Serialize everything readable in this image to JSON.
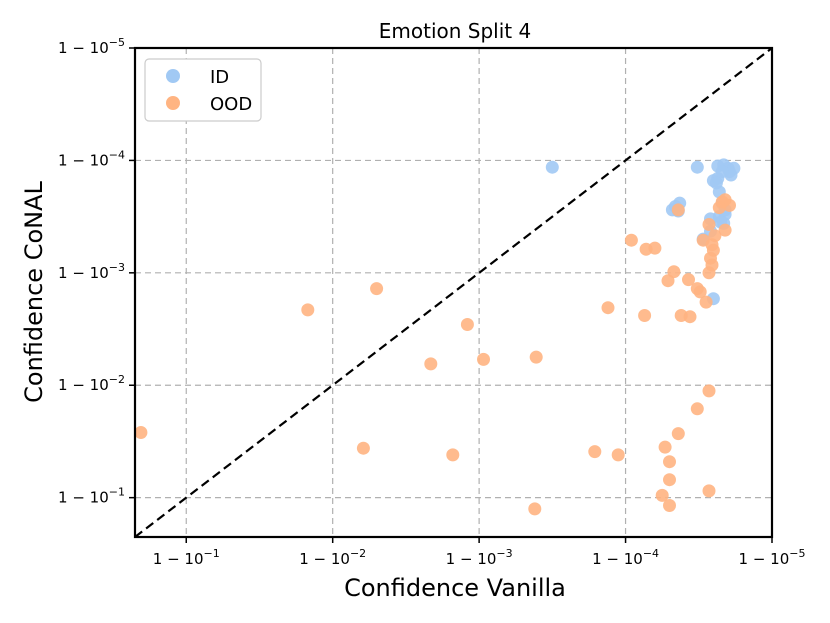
{
  "chart_data": {
    "type": "scatter",
    "title": "Emotion Split 4",
    "xlabel": "Confidence Vanilla",
    "ylabel": "Confidence CoNAL",
    "scale": "log(1 - confidence)",
    "xlim_exponent": [
      -0.65,
      -5.0
    ],
    "ylim_exponent": [
      -0.65,
      -5.0
    ],
    "x_ticks": [
      {
        "exp": -1,
        "base": "1 − 10",
        "sup": "−1"
      },
      {
        "exp": -2,
        "base": "1 − 10",
        "sup": "−2"
      },
      {
        "exp": -3,
        "base": "1 − 10",
        "sup": "−3"
      },
      {
        "exp": -4,
        "base": "1 − 10",
        "sup": "−4"
      },
      {
        "exp": -5,
        "base": "1 − 10",
        "sup": "−5"
      }
    ],
    "y_ticks": [
      {
        "exp": -1,
        "base": "1 − 10",
        "sup": "−1"
      },
      {
        "exp": -2,
        "base": "1 − 10",
        "sup": "−2"
      },
      {
        "exp": -3,
        "base": "1 − 10",
        "sup": "−3"
      },
      {
        "exp": -4,
        "base": "1 − 10",
        "sup": "−4"
      },
      {
        "exp": -5,
        "base": "1 − 10",
        "sup": "−5"
      }
    ],
    "diagonal": true,
    "grid": true,
    "legend_position": "top-left",
    "series": [
      {
        "name": "ID",
        "color": "#a1c9f4",
        "points": [
          [
            -3.5,
            -3.94
          ],
          [
            -4.49,
            -3.94
          ],
          [
            -4.63,
            -3.95
          ],
          [
            -4.67,
            -3.96
          ],
          [
            -4.7,
            -3.93
          ],
          [
            -4.71,
            -3.9
          ],
          [
            -4.72,
            -3.87
          ],
          [
            -4.74,
            -3.93
          ],
          [
            -4.6,
            -3.82
          ],
          [
            -4.63,
            -3.84
          ],
          [
            -4.66,
            -3.9
          ],
          [
            -4.62,
            -3.8
          ],
          [
            -4.64,
            -3.72
          ],
          [
            -4.66,
            -3.62
          ],
          [
            -4.68,
            -3.56
          ],
          [
            -4.37,
            -3.62
          ],
          [
            -4.34,
            -3.59
          ],
          [
            -4.36,
            -3.55
          ],
          [
            -4.32,
            -3.56
          ],
          [
            -4.64,
            -3.5
          ],
          [
            -4.68,
            -3.52
          ],
          [
            -4.65,
            -3.45
          ],
          [
            -4.58,
            -3.48
          ],
          [
            -4.67,
            -3.44
          ],
          [
            -4.53,
            -3.3
          ],
          [
            -4.58,
            -3.37
          ],
          [
            -4.6,
            -2.77
          ]
        ]
      },
      {
        "name": "OOD",
        "color": "#ffb482",
        "points": [
          [
            -4.71,
            -3.6
          ],
          [
            -4.68,
            -3.65
          ],
          [
            -4.66,
            -3.63
          ],
          [
            -4.64,
            -3.58
          ],
          [
            -4.36,
            -3.56
          ],
          [
            -4.68,
            -3.38
          ],
          [
            -4.57,
            -3.43
          ],
          [
            -4.61,
            -3.33
          ],
          [
            -4.53,
            -3.29
          ],
          [
            -4.59,
            -3.25
          ],
          [
            -4.6,
            -3.2
          ],
          [
            -4.58,
            -3.13
          ],
          [
            -4.59,
            -3.07
          ],
          [
            -4.57,
            -3.0
          ],
          [
            -4.04,
            -3.29
          ],
          [
            -4.2,
            -3.22
          ],
          [
            -4.14,
            -3.21
          ],
          [
            -4.33,
            -3.01
          ],
          [
            -4.29,
            -2.93
          ],
          [
            -4.43,
            -2.94
          ],
          [
            -4.49,
            -2.86
          ],
          [
            -4.51,
            -2.83
          ],
          [
            -4.55,
            -2.74
          ],
          [
            -4.44,
            -2.61
          ],
          [
            -3.88,
            -2.69
          ],
          [
            -4.13,
            -2.62
          ],
          [
            -4.38,
            -2.62
          ],
          [
            -1.83,
            -2.67
          ],
          [
            -2.3,
            -2.86
          ],
          [
            -2.92,
            -2.54
          ],
          [
            -2.67,
            -2.19
          ],
          [
            -3.03,
            -2.23
          ],
          [
            -3.39,
            -2.25
          ],
          [
            -4.57,
            -1.95
          ],
          [
            -0.69,
            -1.58
          ],
          [
            -2.21,
            -1.44
          ],
          [
            -4.49,
            -1.79
          ],
          [
            -4.36,
            -1.57
          ],
          [
            -4.27,
            -1.45
          ],
          [
            -3.95,
            -1.38
          ],
          [
            -3.79,
            -1.41
          ],
          [
            -4.3,
            -1.32
          ],
          [
            -2.82,
            -1.38
          ],
          [
            -4.3,
            -1.16
          ],
          [
            -4.25,
            -1.02
          ],
          [
            -4.57,
            -1.06
          ],
          [
            -4.3,
            -0.93
          ],
          [
            -3.38,
            -0.9
          ]
        ]
      }
    ]
  }
}
